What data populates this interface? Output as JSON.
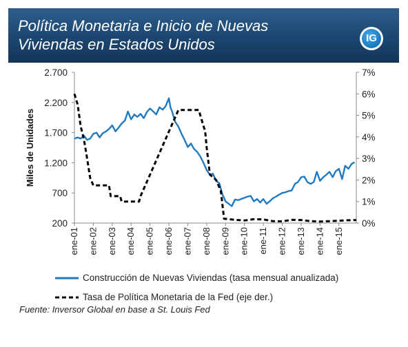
{
  "header": {
    "title_line1": "Política Monetaria e Inicio de Nuevas",
    "title_line2": "Viviendas en Estados Unidos",
    "logo_text": "IG"
  },
  "legend": {
    "series1": "Construcción de Nuevas Viviendas (tasa mensual anualizada)",
    "series2": "Tasa de Política Monetaria de la Fed (eje der.)"
  },
  "source": "Fuente: Inversor Global en base a St. Louis Fed",
  "colors": {
    "housing": "#1f7ac2",
    "fed": "#000000",
    "header": "#1c4670"
  },
  "chart_data": {
    "type": "line",
    "y_left_label": "Miles de Unidades",
    "y_left_ticks": [
      "200",
      "700",
      "1.200",
      "1.700",
      "2.200",
      "2.700"
    ],
    "y_left_range": [
      200,
      2700
    ],
    "y_right_ticks": [
      "0%",
      "1%",
      "2%",
      "3%",
      "4%",
      "5%",
      "6%",
      "7%"
    ],
    "y_right_range": [
      0,
      7
    ],
    "x_ticks": [
      "ene-01",
      "ene-02",
      "ene-03",
      "ene-04",
      "ene-05",
      "ene-06",
      "ene-07",
      "ene-08",
      "ene-09",
      "ene-10",
      "ene-11",
      "ene-12",
      "ene-13",
      "ene-14",
      "ene-15"
    ],
    "x_range": [
      2001.0,
      2015.92
    ],
    "series": [
      {
        "name": "Construcción de Nuevas Viviendas (tasa mensual anualizada)",
        "axis": "left",
        "style": "solid",
        "points": [
          [
            2001.0,
            1600
          ],
          [
            2001.17,
            1620
          ],
          [
            2001.33,
            1600
          ],
          [
            2001.5,
            1650
          ],
          [
            2001.67,
            1580
          ],
          [
            2001.83,
            1600
          ],
          [
            2002.0,
            1680
          ],
          [
            2002.17,
            1700
          ],
          [
            2002.33,
            1620
          ],
          [
            2002.5,
            1690
          ],
          [
            2002.67,
            1720
          ],
          [
            2002.83,
            1760
          ],
          [
            2003.0,
            1820
          ],
          [
            2003.17,
            1720
          ],
          [
            2003.33,
            1780
          ],
          [
            2003.5,
            1850
          ],
          [
            2003.67,
            1900
          ],
          [
            2003.83,
            2050
          ],
          [
            2004.0,
            1920
          ],
          [
            2004.17,
            2000
          ],
          [
            2004.33,
            1960
          ],
          [
            2004.5,
            2010
          ],
          [
            2004.67,
            1940
          ],
          [
            2004.83,
            2040
          ],
          [
            2005.0,
            2100
          ],
          [
            2005.17,
            2050
          ],
          [
            2005.33,
            2000
          ],
          [
            2005.5,
            2120
          ],
          [
            2005.67,
            2080
          ],
          [
            2005.83,
            2140
          ],
          [
            2006.0,
            2270
          ],
          [
            2006.08,
            2120
          ],
          [
            2006.17,
            2050
          ],
          [
            2006.33,
            1880
          ],
          [
            2006.5,
            1800
          ],
          [
            2006.67,
            1680
          ],
          [
            2006.83,
            1580
          ],
          [
            2007.0,
            1460
          ],
          [
            2007.17,
            1520
          ],
          [
            2007.33,
            1430
          ],
          [
            2007.5,
            1380
          ],
          [
            2007.67,
            1300
          ],
          [
            2007.83,
            1200
          ],
          [
            2008.0,
            1080
          ],
          [
            2008.17,
            1000
          ],
          [
            2008.33,
            1020
          ],
          [
            2008.5,
            900
          ],
          [
            2008.67,
            860
          ],
          [
            2008.83,
            680
          ],
          [
            2009.0,
            560
          ],
          [
            2009.17,
            520
          ],
          [
            2009.33,
            480
          ],
          [
            2009.5,
            590
          ],
          [
            2009.67,
            580
          ],
          [
            2009.83,
            600
          ],
          [
            2010.0,
            620
          ],
          [
            2010.17,
            640
          ],
          [
            2010.33,
            650
          ],
          [
            2010.5,
            560
          ],
          [
            2010.67,
            600
          ],
          [
            2010.83,
            540
          ],
          [
            2011.0,
            600
          ],
          [
            2011.17,
            520
          ],
          [
            2011.33,
            560
          ],
          [
            2011.5,
            610
          ],
          [
            2011.67,
            640
          ],
          [
            2011.83,
            670
          ],
          [
            2012.0,
            700
          ],
          [
            2012.17,
            710
          ],
          [
            2012.33,
            730
          ],
          [
            2012.5,
            740
          ],
          [
            2012.67,
            850
          ],
          [
            2012.83,
            880
          ],
          [
            2013.0,
            960
          ],
          [
            2013.17,
            970
          ],
          [
            2013.33,
            880
          ],
          [
            2013.5,
            850
          ],
          [
            2013.67,
            880
          ],
          [
            2013.83,
            1050
          ],
          [
            2014.0,
            900
          ],
          [
            2014.17,
            960
          ],
          [
            2014.33,
            1000
          ],
          [
            2014.5,
            1050
          ],
          [
            2014.67,
            960
          ],
          [
            2014.83,
            1060
          ],
          [
            2015.0,
            1100
          ],
          [
            2015.17,
            930
          ],
          [
            2015.33,
            1150
          ],
          [
            2015.5,
            1100
          ],
          [
            2015.67,
            1180
          ],
          [
            2015.83,
            1210
          ]
        ]
      },
      {
        "name": "Tasa de Política Monetaria de la Fed (eje der.)",
        "axis": "right",
        "style": "dashed",
        "points": [
          [
            2001.0,
            6.0
          ],
          [
            2001.17,
            5.5
          ],
          [
            2001.33,
            4.5
          ],
          [
            2001.5,
            3.9
          ],
          [
            2001.67,
            3.0
          ],
          [
            2001.83,
            2.1
          ],
          [
            2002.0,
            1.75
          ],
          [
            2002.5,
            1.75
          ],
          [
            2002.83,
            1.75
          ],
          [
            2002.92,
            1.25
          ],
          [
            2003.42,
            1.25
          ],
          [
            2003.5,
            1.0
          ],
          [
            2004.42,
            1.0
          ],
          [
            2004.5,
            1.25
          ],
          [
            2005.0,
            2.25
          ],
          [
            2005.5,
            3.25
          ],
          [
            2006.0,
            4.25
          ],
          [
            2006.5,
            5.25
          ],
          [
            2007.58,
            5.25
          ],
          [
            2007.75,
            4.75
          ],
          [
            2007.92,
            4.25
          ],
          [
            2008.0,
            3.5
          ],
          [
            2008.17,
            2.25
          ],
          [
            2008.5,
            2.0
          ],
          [
            2008.75,
            1.5
          ],
          [
            2008.92,
            0.2
          ],
          [
            2009.5,
            0.15
          ],
          [
            2010.0,
            0.12
          ],
          [
            2010.5,
            0.18
          ],
          [
            2011.0,
            0.17
          ],
          [
            2011.5,
            0.09
          ],
          [
            2012.0,
            0.08
          ],
          [
            2012.5,
            0.15
          ],
          [
            2013.0,
            0.14
          ],
          [
            2013.5,
            0.09
          ],
          [
            2014.0,
            0.07
          ],
          [
            2014.5,
            0.09
          ],
          [
            2015.0,
            0.11
          ],
          [
            2015.5,
            0.13
          ],
          [
            2015.92,
            0.14
          ]
        ]
      }
    ]
  }
}
